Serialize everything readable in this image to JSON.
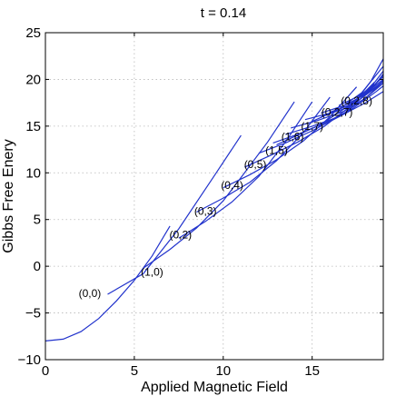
{
  "chart_data": {
    "type": "line",
    "title": "t = 0.14",
    "xlabel": "Applied Magnetic Field",
    "ylabel": "Gibbs Free Enery",
    "xlim": [
      0,
      19
    ],
    "ylim": [
      -10,
      25
    ],
    "xticks": [
      0,
      5,
      10,
      15
    ],
    "yticks": [
      -10,
      -5,
      0,
      5,
      10,
      15,
      20,
      25
    ],
    "grid": true,
    "line_color": "#2233cc",
    "series": [
      {
        "x": [
          0,
          1,
          2,
          3,
          4,
          5,
          6,
          7
        ],
        "y": [
          -8.0,
          -7.8,
          -7.0,
          -5.6,
          -3.7,
          -1.5,
          1.1,
          4.3
        ]
      },
      {
        "x": [
          3.5,
          5.5,
          7.5,
          9.5,
          11.0
        ],
        "y": [
          -3.0,
          -0.8,
          4.0,
          9.7,
          14.0
        ]
      },
      {
        "x": [
          5.5,
          7.0,
          8.5,
          10.0,
          11.0,
          12.5,
          14.0
        ],
        "y": [
          -0.2,
          1.8,
          4.1,
          7.0,
          9.5,
          13.3,
          17.6
        ]
      },
      {
        "x": [
          7.5,
          9.0,
          10.5,
          12.0,
          13.5,
          15.0
        ],
        "y": [
          3.0,
          4.8,
          6.9,
          9.6,
          13.3,
          17.6
        ]
      },
      {
        "x": [
          8.5,
          10.0,
          11.5,
          13.0,
          14.5,
          16.0
        ],
        "y": [
          5.8,
          7.3,
          9.0,
          11.3,
          14.3,
          18.1
        ]
      },
      {
        "x": [
          10.0,
          11.5,
          13.0,
          14.5,
          16.0,
          17.5
        ],
        "y": [
          8.4,
          9.8,
          11.4,
          13.4,
          16.0,
          19.2
        ]
      },
      {
        "x": [
          11.2,
          12.7,
          14.2,
          15.7,
          17.2,
          18.5
        ],
        "y": [
          10.6,
          11.9,
          13.3,
          15.0,
          17.2,
          19.7
        ]
      },
      {
        "x": [
          12.0,
          13.5,
          15.0,
          16.5,
          18.0,
          19.0
        ],
        "y": [
          12.1,
          13.2,
          14.5,
          16.0,
          18.0,
          19.8
        ]
      },
      {
        "x": [
          12.8,
          14.3,
          15.8,
          17.3,
          18.6,
          19.0
        ],
        "y": [
          13.2,
          14.2,
          15.4,
          16.9,
          18.7,
          19.3
        ]
      },
      {
        "x": [
          13.5,
          15.0,
          16.5,
          18.0,
          19.0
        ],
        "y": [
          14.1,
          15.0,
          16.0,
          17.5,
          18.7
        ]
      },
      {
        "x": [
          13.8,
          15.3,
          16.8,
          18.0,
          19.0
        ],
        "y": [
          14.8,
          15.6,
          16.6,
          18.0,
          19.6
        ]
      },
      {
        "x": [
          14.6,
          16.0,
          17.5,
          18.5,
          19.0
        ],
        "y": [
          15.7,
          16.4,
          17.6,
          19.0,
          19.9
        ]
      },
      {
        "x": [
          15.5,
          16.8,
          18.0,
          19.0
        ],
        "y": [
          16.4,
          17.2,
          18.4,
          19.8
        ]
      },
      {
        "x": [
          16.5,
          17.6,
          18.5,
          19.0
        ],
        "y": [
          17.2,
          18.2,
          19.4,
          20.3
        ]
      },
      {
        "x": [
          17.0,
          18.0,
          19.0
        ],
        "y": [
          17.3,
          18.5,
          20.0
        ]
      },
      {
        "x": [
          17.8,
          18.5,
          19.0
        ],
        "y": [
          18.0,
          19.3,
          20.6
        ]
      },
      {
        "x": [
          15.0,
          16.5,
          17.8,
          19.0
        ],
        "y": [
          15.5,
          16.8,
          18.6,
          21.4
        ]
      },
      {
        "x": [
          15.5,
          17.0,
          18.2,
          19.0
        ],
        "y": [
          16.0,
          17.0,
          18.9,
          20.9
        ]
      },
      {
        "x": [
          16.0,
          17.5,
          18.5,
          19.0
        ],
        "y": [
          16.5,
          17.5,
          19.4,
          20.5
        ]
      },
      {
        "x": [
          13.0,
          15.5,
          17.0,
          18.5
        ],
        "y": [
          13.0,
          15.2,
          17.1,
          19.5
        ]
      },
      {
        "x": [
          17.5,
          18.3,
          19.0
        ],
        "y": [
          17.8,
          19.8,
          22.2
        ]
      }
    ],
    "annotations": [
      {
        "text": "(0,0)",
        "x": 2.5,
        "y": -3.3
      },
      {
        "text": "(1,0)",
        "x": 6.0,
        "y": -1.0
      },
      {
        "text": "(0,2)",
        "x": 7.6,
        "y": 3.0
      },
      {
        "text": "(0,3)",
        "x": 9.0,
        "y": 5.5
      },
      {
        "text": "(0,4)",
        "x": 10.5,
        "y": 8.3
      },
      {
        "text": "(0,5)",
        "x": 11.8,
        "y": 10.5
      },
      {
        "text": "(1,5)",
        "x": 13.0,
        "y": 12.0
      },
      {
        "text": "(1,6)",
        "x": 13.9,
        "y": 13.5
      },
      {
        "text": "(1,7)",
        "x": 15.0,
        "y": 14.6
      },
      {
        "text": "(0,2,7)",
        "x": 16.4,
        "y": 16.1
      },
      {
        "text": "(0,2,8)",
        "x": 17.5,
        "y": 17.3
      }
    ]
  }
}
